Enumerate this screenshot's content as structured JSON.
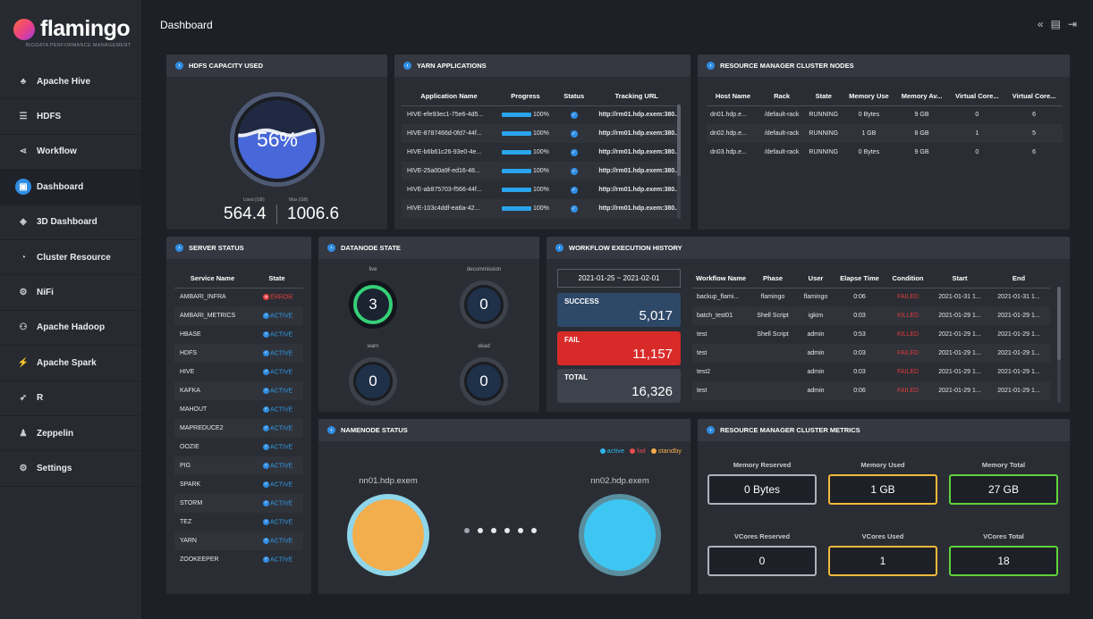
{
  "brand": {
    "name": "flamingo",
    "sub": "BIGDATA PERFORMANCE MANAGEMENT"
  },
  "sidebar": {
    "items": [
      {
        "label": "Apache Hive",
        "icon": "hive-icon"
      },
      {
        "label": "HDFS",
        "icon": "hdfs-icon"
      },
      {
        "label": "Workflow",
        "icon": "workflow-icon"
      },
      {
        "label": "Dashboard",
        "icon": "dashboard-icon",
        "active": true
      },
      {
        "label": "3D Dashboard",
        "icon": "cube-icon"
      },
      {
        "label": "Cluster Resource",
        "icon": "gauge-icon"
      },
      {
        "label": "NiFi",
        "icon": "nifi-icon"
      },
      {
        "label": "Apache Hadoop",
        "icon": "hadoop-icon"
      },
      {
        "label": "Apache Spark",
        "icon": "spark-icon"
      },
      {
        "label": "R",
        "icon": "r-icon"
      },
      {
        "label": "Zeppelin",
        "icon": "zeppelin-icon"
      },
      {
        "label": "Settings",
        "icon": "gear-icon"
      }
    ]
  },
  "header": {
    "title": "Dashboard"
  },
  "hdfs": {
    "title": "HDFS CAPACITY USED",
    "percent": "56%",
    "fill": 0.56,
    "used_label": "Used (GB)",
    "max_label": "Max (GB)",
    "used": "564.4",
    "max": "1006.6"
  },
  "yarn": {
    "title": "YARN APPLICATIONS",
    "columns": [
      "Application Name",
      "Progress",
      "Status",
      "Tracking URL"
    ],
    "rows": [
      {
        "name": "HIVE-efe93ec1-75e6-4d5...",
        "progress": "100%",
        "url": "http://rm01.hdp.exem:380..."
      },
      {
        "name": "HIVE-8787466d-0fd7-44f...",
        "progress": "100%",
        "url": "http://rm01.hdp.exem:380..."
      },
      {
        "name": "HIVE-b6b61c26-93e0-4e...",
        "progress": "100%",
        "url": "http://rm01.hdp.exem:380..."
      },
      {
        "name": "HIVE-25a00a9f-ed16-48...",
        "progress": "100%",
        "url": "http://rm01.hdp.exem:380..."
      },
      {
        "name": "HIVE-ab875703-f566-44f...",
        "progress": "100%",
        "url": "http://rm01.hdp.exem:380..."
      },
      {
        "name": "HIVE-103c4ddf-ea6a-42...",
        "progress": "100%",
        "url": "http://rm01.hdp.exem:380..."
      }
    ]
  },
  "rm_nodes": {
    "title": "RESOURCE MANAGER CLUSTER NODES",
    "columns": [
      "Host Name",
      "Rack",
      "State",
      "Memory Use",
      "Memory Av...",
      "Virtual Core...",
      "Virtual Core..."
    ],
    "rows": [
      [
        "dn01.hdp.e...",
        "/default-rack",
        "RUNNING",
        "0 Bytes",
        "9 GB",
        "0",
        "6"
      ],
      [
        "dn02.hdp.e...",
        "/default-rack",
        "RUNNING",
        "1 GB",
        "8 GB",
        "1",
        "5"
      ],
      [
        "dn03.hdp.e...",
        "/default-rack",
        "RUNNING",
        "0 Bytes",
        "9 GB",
        "0",
        "6"
      ]
    ]
  },
  "server_status": {
    "title": "SERVER STATUS",
    "columns": [
      "Service Name",
      "State"
    ],
    "rows": [
      {
        "name": "AMBARI_INFRA",
        "state": "ERROR"
      },
      {
        "name": "AMBARI_METRICS",
        "state": "ACTIVE"
      },
      {
        "name": "HBASE",
        "state": "ACTIVE"
      },
      {
        "name": "HDFS",
        "state": "ACTIVE"
      },
      {
        "name": "HIVE",
        "state": "ACTIVE"
      },
      {
        "name": "KAFKA",
        "state": "ACTIVE"
      },
      {
        "name": "MAHOUT",
        "state": "ACTIVE"
      },
      {
        "name": "MAPREDUCE2",
        "state": "ACTIVE"
      },
      {
        "name": "OOZIE",
        "state": "ACTIVE"
      },
      {
        "name": "PIG",
        "state": "ACTIVE"
      },
      {
        "name": "SPARK",
        "state": "ACTIVE"
      },
      {
        "name": "STORM",
        "state": "ACTIVE"
      },
      {
        "name": "TEZ",
        "state": "ACTIVE"
      },
      {
        "name": "YARN",
        "state": "ACTIVE"
      },
      {
        "name": "ZOOKEEPER",
        "state": "ACTIVE"
      }
    ]
  },
  "datanode": {
    "title": "DATANODE STATE",
    "live_label": "live",
    "live": "3",
    "decommission_label": "decommission",
    "decommission": "0",
    "warn_label": "warn",
    "warn": "0",
    "dead_label": "dead",
    "dead": "0"
  },
  "workflow": {
    "title": "WORKFLOW EXECUTION HISTORY",
    "date_range": "2021-01-25 ~ 2021-02-01",
    "success_label": "SUCCESS",
    "success": "5,017",
    "fail_label": "FAIL",
    "fail": "11,157",
    "total_label": "TOTAL",
    "total": "16,326",
    "columns": [
      "Workflow Name",
      "Phase",
      "User",
      "Elapse Time",
      "Condition",
      "Start",
      "End"
    ],
    "rows": [
      [
        "backup_flami...",
        "flamingo",
        "flamingo",
        "0:06",
        "FAILED",
        "2021-01-31 1...",
        "2021-01-31 1..."
      ],
      [
        "batch_test01",
        "Shell Script",
        "igkim",
        "0:03",
        "KILLED",
        "2021-01-29 1...",
        "2021-01-29 1..."
      ],
      [
        "test",
        "Shell Script",
        "admin",
        "0:53",
        "KILLED",
        "2021-01-29 1...",
        "2021-01-29 1..."
      ],
      [
        "test",
        "",
        "admin",
        "0:03",
        "FAILED",
        "2021-01-29 1...",
        "2021-01-29 1..."
      ],
      [
        "test2",
        "",
        "admin",
        "0:03",
        "FAILED",
        "2021-01-29 1...",
        "2021-01-29 1..."
      ],
      [
        "test",
        "",
        "admin",
        "0:06",
        "FAILED",
        "2021-01-29 1...",
        "2021-01-29 1..."
      ]
    ]
  },
  "namenode": {
    "title": "NAMENODE STATUS",
    "legend": {
      "active": "active",
      "fail": "fail",
      "standby": "standby"
    },
    "colors": {
      "active": "#2fb6ef",
      "fail": "#e64d4d",
      "standby": "#f2ae4d"
    },
    "node1": "nn01.hdp.exem",
    "node2": "nn02.hdp.exem"
  },
  "metrics": {
    "title": "RESOURCE MANAGER CLUSTER METRICS",
    "memory_reserved_label": "Memory Reserved",
    "memory_reserved": "0 Bytes",
    "memory_used_label": "Memory Used",
    "memory_used": "1 GB",
    "memory_total_label": "Memory Total",
    "memory_total": "27 GB",
    "vcores_reserved_label": "VCores Reserved",
    "vcores_reserved": "0",
    "vcores_used_label": "VCores Used",
    "vcores_used": "1",
    "vcores_total_label": "VCores Total",
    "vcores_total": "18"
  }
}
